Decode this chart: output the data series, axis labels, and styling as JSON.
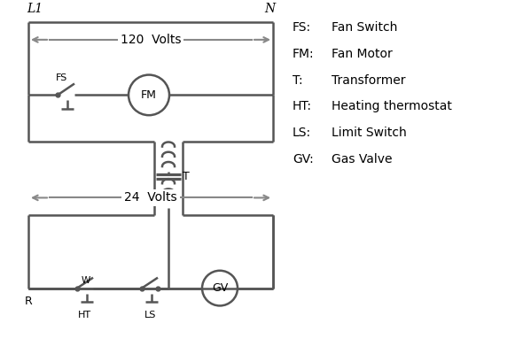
{
  "bg_color": "#ffffff",
  "line_color": "#555555",
  "text_color": "#000000",
  "legend": [
    [
      "FS:",
      "Fan Switch"
    ],
    [
      "FM:",
      "Fan Motor"
    ],
    [
      "T:",
      "Transformer"
    ],
    [
      "HT:",
      "Heating thermostat"
    ],
    [
      "LS:",
      "Limit Switch"
    ],
    [
      "GV:",
      "Gas Valve"
    ]
  ],
  "lw": 1.8
}
